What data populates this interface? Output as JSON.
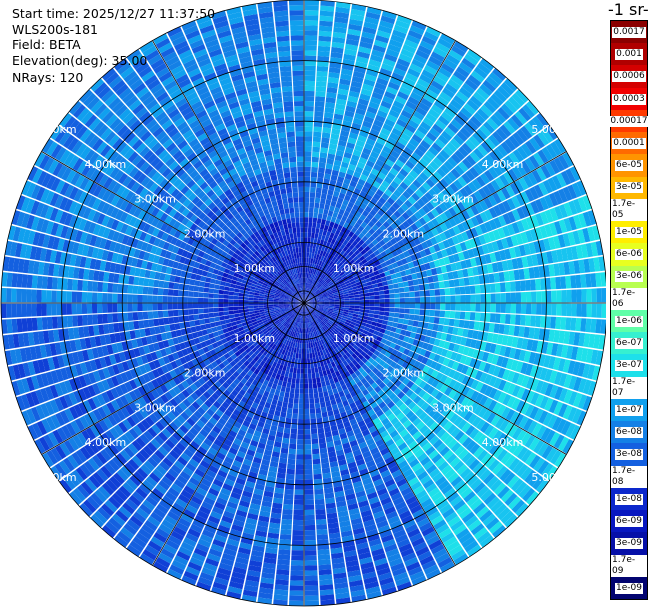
{
  "info": {
    "start_time": "Start time: 2025/12/27 11:37:50",
    "device": "WLS200s-181",
    "field": "Field: BETA",
    "elevation": "Elevation(deg): 35.00",
    "nrays": "NRays: 120"
  },
  "colorbar": {
    "title": "-1 sr-",
    "labels": [
      "0.0017",
      "0.001",
      "0.0006",
      "0.0003",
      "0.00017",
      "0.0001",
      "6e-05",
      "3e-05",
      "1.7e-05",
      "1e-05",
      "6e-06",
      "3e-06",
      "1.7e-06",
      "1e-06",
      "6e-07",
      "3e-07",
      "1.7e-07",
      "1e-07",
      "6e-08",
      "3e-08",
      "1.7e-08",
      "1e-08",
      "6e-09",
      "3e-09",
      "1.7e-09",
      "1e-09"
    ],
    "colors": [
      "#8b0000",
      "#b00000",
      "#d40000",
      "#f20000",
      "#ff3a00",
      "#ff6a00",
      "#ff9400",
      "#ffb800",
      "#ffd400",
      "#ffee00",
      "#e8ff20",
      "#b8ff50",
      "#8cff80",
      "#60ffa8",
      "#36f0d0",
      "#1ee0ea",
      "#18c4f0",
      "#10a0ee",
      "#1480e6",
      "#1460e0",
      "#1040d6",
      "#0c28cc",
      "#0818c0",
      "#0610a8",
      "#040888",
      "#020470"
    ]
  },
  "chart_data": {
    "type": "heatmap",
    "projection": "polar-ppi",
    "nrays": 120,
    "elevation_deg": 35.0,
    "range_km": [
      0,
      5.0
    ],
    "range_rings_km": [
      1.0,
      2.0,
      3.0,
      4.0,
      5.0
    ],
    "ring_labels": [
      "1.00km",
      "2.00km",
      "3.00km",
      "4.00km",
      "5.00km"
    ],
    "sectors": [
      {
        "azimuth_deg": [
          0,
          70
        ],
        "dominant_value": "1e-07"
      },
      {
        "azimuth_deg": [
          70,
          150
        ],
        "dominant_value": "1.7e-07"
      },
      {
        "azimuth_deg": [
          150,
          270
        ],
        "dominant_value": "3e-08"
      },
      {
        "azimuth_deg": [
          270,
          360
        ],
        "dominant_value": "6e-08"
      }
    ],
    "near_range_value": "1e-08"
  }
}
